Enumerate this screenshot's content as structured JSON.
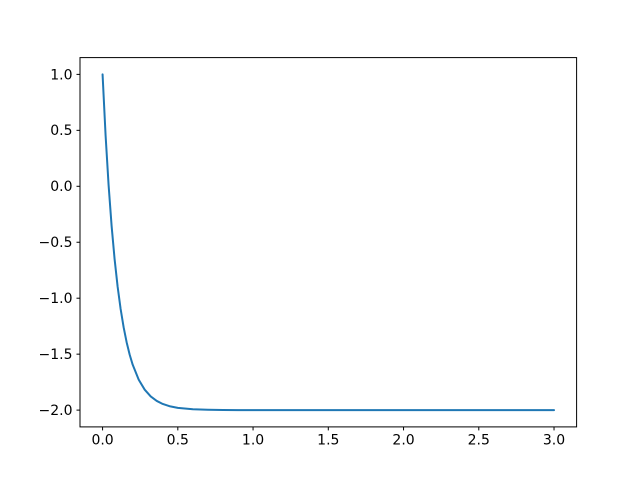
{
  "chart_data": {
    "type": "line",
    "title": "",
    "xlabel": "",
    "ylabel": "",
    "xlim": [
      -0.15,
      3.15
    ],
    "ylim": [
      -2.15,
      1.15
    ],
    "xticks": [
      0.0,
      0.5,
      1.0,
      1.5,
      2.0,
      2.5,
      3.0
    ],
    "xtick_labels": [
      "0.0",
      "0.5",
      "1.0",
      "1.5",
      "2.0",
      "2.5",
      "3.0"
    ],
    "yticks": [
      -2.0,
      -1.5,
      -1.0,
      -0.5,
      0.0,
      0.5,
      1.0
    ],
    "ytick_labels": [
      "−2.0",
      "−1.5",
      "−1.0",
      "−0.5",
      "0.0",
      "0.5",
      "1.0"
    ],
    "grid": false,
    "legend": false,
    "background_color": "#ffffff",
    "spine_color": "#000000",
    "tick_color": "#000000",
    "series": [
      {
        "name": "series-0",
        "color": "#1f77b4",
        "line_width": 2,
        "x": [
          0.0,
          0.02,
          0.04,
          0.06,
          0.08,
          0.1,
          0.12,
          0.14,
          0.16,
          0.18,
          0.2,
          0.24,
          0.28,
          0.32,
          0.36,
          0.4,
          0.45,
          0.5,
          0.6,
          0.7,
          0.8,
          0.9,
          1.0,
          1.25,
          1.5,
          2.0,
          2.5,
          3.0
        ],
        "y": [
          1.0,
          0.4562,
          0.011,
          -0.3536,
          -0.652,
          -0.8964,
          -1.0964,
          -1.2602,
          -1.3943,
          -1.5041,
          -1.594,
          -1.7278,
          -1.8176,
          -1.8777,
          -1.918,
          -1.9451,
          -1.9667,
          -1.9798,
          -1.9926,
          -1.9973,
          -1.999,
          -1.9996,
          -1.9999,
          -2.0,
          -2.0,
          -2.0,
          -2.0,
          -2.0
        ]
      }
    ]
  }
}
